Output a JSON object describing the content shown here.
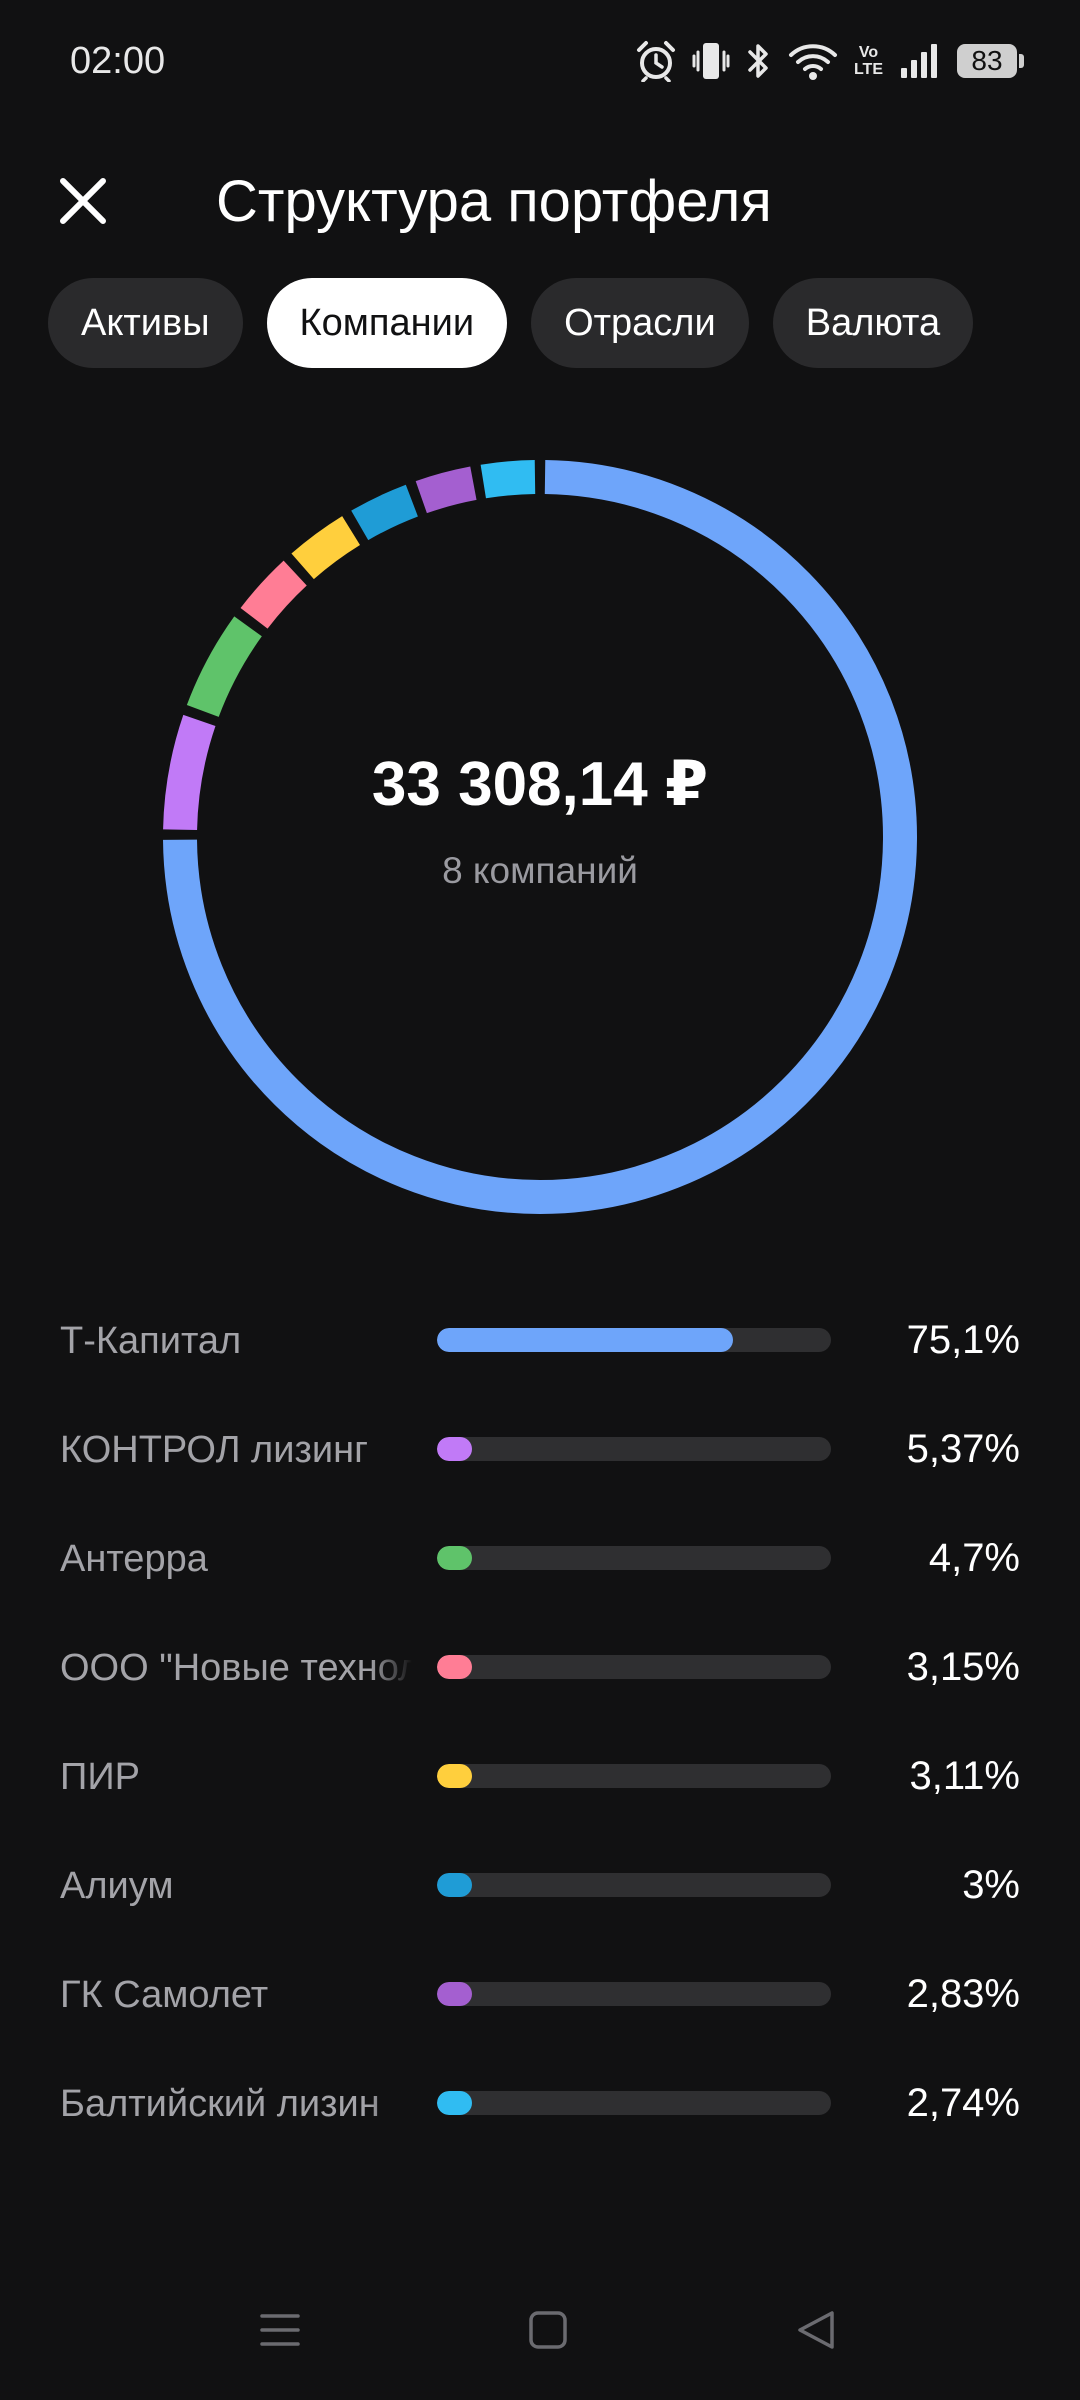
{
  "status_bar": {
    "time": "02:00",
    "volte_top": "Vo",
    "volte_bottom": "LTE",
    "battery": "83",
    "icons": [
      "alarm-icon",
      "vibrate-icon",
      "bluetooth-icon",
      "wifi-icon",
      "volte-icon",
      "signal-icon",
      "battery-icon"
    ]
  },
  "header": {
    "title": "Структура портфеля",
    "close_icon": "close-icon"
  },
  "tabs": [
    {
      "label": "Активы",
      "active": false
    },
    {
      "label": "Компании",
      "active": true
    },
    {
      "label": "Отрасли",
      "active": false
    },
    {
      "label": "Валюта",
      "active": false
    }
  ],
  "summary": {
    "total": "33 308,14 ₽",
    "subtitle": "8 компаний"
  },
  "chart_data": {
    "type": "pie",
    "variant": "donut",
    "categories": [
      "Т-Капитал",
      "КОНТРОЛ лизинг",
      "Антерра",
      "ООО \"Новые технологии\"",
      "ПИР",
      "Алиум",
      "ГК Самолет",
      "Балтийский лизинг"
    ],
    "values": [
      75.1,
      5.37,
      4.7,
      3.15,
      3.11,
      3,
      2.83,
      2.74
    ],
    "colors": [
      "#6ea5fa",
      "#c17af7",
      "#5fc36a",
      "#ff7d95",
      "#ffcf3d",
      "#1f9cd6",
      "#a45fd0",
      "#30bcf2"
    ]
  },
  "companies": [
    {
      "name": "Т-Капитал",
      "percent": "75,1%",
      "share": 0.751,
      "color": "#6ea5fa"
    },
    {
      "name": "КОНТРОЛ лизинг",
      "percent": "5,37%",
      "share": 0.0537,
      "color": "#c17af7"
    },
    {
      "name": "Антерра",
      "percent": "4,7%",
      "share": 0.047,
      "color": "#5fc36a"
    },
    {
      "name": "ООО \"Новые технол",
      "percent": "3,15%",
      "share": 0.0315,
      "color": "#ff7d95"
    },
    {
      "name": "ПИР",
      "percent": "3,11%",
      "share": 0.0311,
      "color": "#ffcf3d"
    },
    {
      "name": "Алиум",
      "percent": "3%",
      "share": 0.03,
      "color": "#1f9cd6"
    },
    {
      "name": "ГК Самолет",
      "percent": "2,83%",
      "share": 0.0283,
      "color": "#a45fd0"
    },
    {
      "name": "Балтийский лизин",
      "percent": "2,74%",
      "share": 0.0274,
      "color": "#30bcf2"
    }
  ],
  "nav_bar": {
    "icons": [
      "menu-icon",
      "home-icon",
      "back-icon"
    ]
  }
}
